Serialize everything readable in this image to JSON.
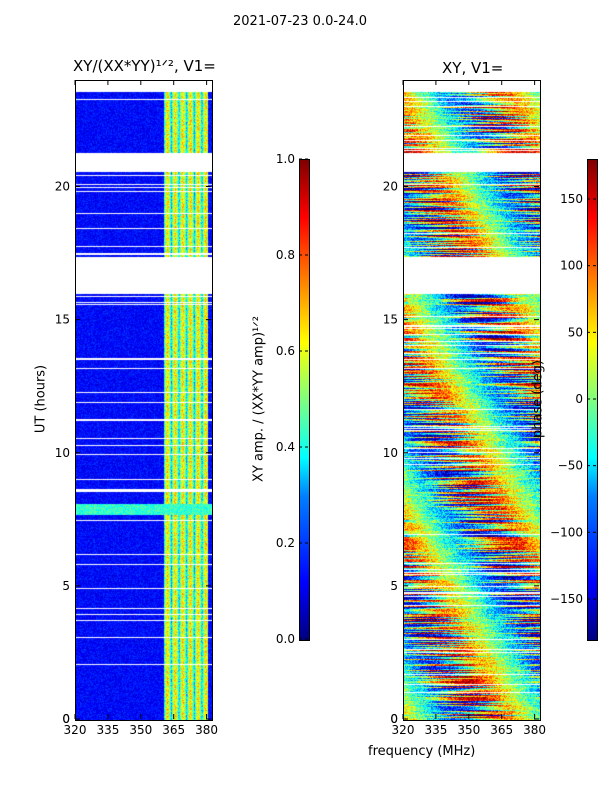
{
  "figure_title": "2021-07-23 0.0-24.0",
  "chart_data": [
    {
      "type": "heatmap",
      "title": "XY/(XX*YY)^{1/2}, V1=",
      "title_display": "XY/(XX*YY)¹ᐟ², V1=",
      "xlabel": "frequency (MHz)",
      "ylabel": "UT (hours)",
      "xlim": [
        320,
        382
      ],
      "ylim": [
        0,
        24
      ],
      "x_ticks": [
        320,
        335,
        350,
        365,
        380
      ],
      "y_ticks": [
        0,
        5,
        10,
        15,
        20
      ],
      "colorbar": {
        "label": "XY amp. / (XX*YY amp)^{1/2}",
        "label_display": "XY amp. / (XX*YY amp)¹ᐟ²",
        "range": [
          0.0,
          1.0
        ],
        "ticks": [
          "0.0",
          "0.2",
          "0.4",
          "0.6",
          "0.8",
          "1.0"
        ],
        "colormap": "jet"
      },
      "data_gaps_hours": [
        [
          16.0,
          17.4
        ],
        [
          20.6,
          21.3
        ]
      ],
      "bright_band_mhz": [
        360,
        380
      ]
    },
    {
      "type": "heatmap",
      "title": "XY, V1=",
      "xlabel": "frequency (MHz)",
      "ylabel": "",
      "xlim": [
        320,
        382
      ],
      "ylim": [
        0,
        24
      ],
      "x_ticks": [
        320,
        335,
        350,
        365,
        380
      ],
      "y_ticks": [
        0,
        5,
        10,
        15,
        20
      ],
      "colorbar": {
        "label": "phase (deg)",
        "range": [
          -180,
          180
        ],
        "ticks": [
          "−150",
          "−100",
          "−50",
          "0",
          "50",
          "100",
          "150"
        ],
        "colormap": "jet"
      },
      "data_gaps_hours": [
        [
          16.0,
          17.4
        ],
        [
          20.6,
          21.3
        ]
      ]
    }
  ],
  "colors": {
    "jet_low": "#00007f",
    "jet_high": "#7f0000",
    "gap": "#ffffff"
  }
}
